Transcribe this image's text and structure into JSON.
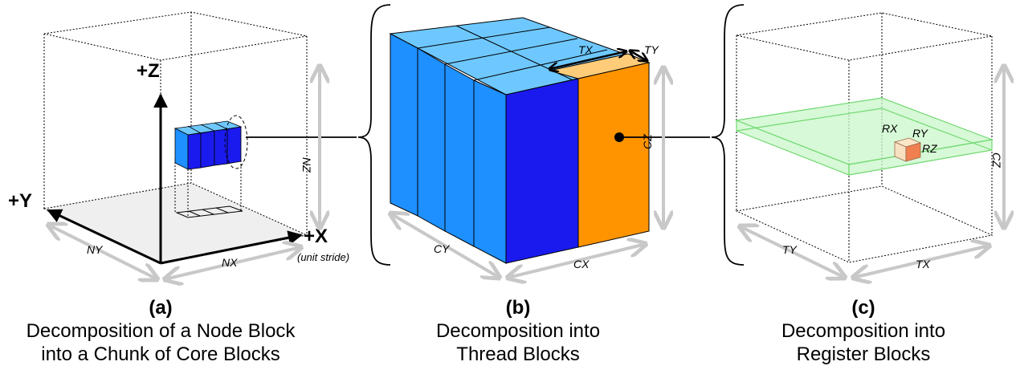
{
  "panel_a": {
    "axis_z": "+Z",
    "axis_y": "+Y",
    "axis_x": "+X",
    "x_note": "(unit stride)",
    "dim_nx": "NX",
    "dim_ny": "NY",
    "dim_nz": "NZ",
    "caption_tag": "(a)",
    "caption_line1": "Decomposition of a Node Block",
    "caption_line2": "into a Chunk of Core Blocks"
  },
  "panel_b": {
    "dim_tx": "TX",
    "dim_ty": "TY",
    "dim_cx": "CX",
    "dim_cy": "CY",
    "dim_cz": "CZ",
    "caption_tag": "(b)",
    "caption_line1": "Decomposition into",
    "caption_line2": "Thread Blocks"
  },
  "panel_c": {
    "dim_rx": "RX",
    "dim_ry": "RY",
    "dim_rz": "RZ",
    "dim_tx": "TX",
    "dim_ty": "TY",
    "dim_cz": "CZ",
    "caption_tag": "(c)",
    "caption_line1": "Decomposition into",
    "caption_line2": "Register Blocks"
  },
  "colors": {
    "light_blue": "#6ec8ff",
    "mid_blue": "#1e90ff",
    "dark_blue": "#1a1aee",
    "orange": "#ff9400",
    "light_orange": "#ffcc7a",
    "green_slab": "#b8f5b8",
    "gray_dim": "#c8c8c8"
  }
}
